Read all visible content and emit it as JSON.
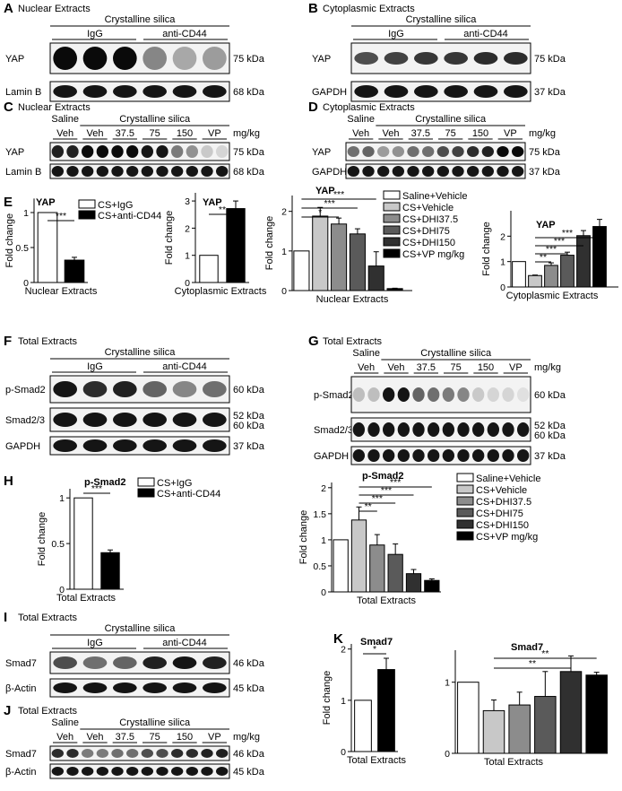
{
  "panels": {
    "A": {
      "label": "A",
      "extract": "Nuclear Extracts",
      "treatment": "Crystalline silica",
      "groups": [
        "IgG",
        "anti-CD44"
      ],
      "rows": [
        {
          "name": "YAP",
          "kda": "75 kDa"
        },
        {
          "name": "Lamin B",
          "kda": "68 kDa"
        }
      ]
    },
    "B": {
      "label": "B",
      "extract": "Cytoplasmic Extracts",
      "treatment": "Crystalline silica",
      "groups": [
        "IgG",
        "anti-CD44"
      ],
      "rows": [
        {
          "name": "YAP",
          "kda": "75 kDa"
        },
        {
          "name": "GAPDH",
          "kda": "37 kDa"
        }
      ]
    },
    "C": {
      "label": "C",
      "extract": "Nuclear Extracts",
      "saline": "Saline",
      "treatment": "Crystalline silica",
      "lanes": [
        "Veh",
        "Veh",
        "37.5",
        "75",
        "150",
        "VP"
      ],
      "unit": "mg/kg",
      "rows": [
        {
          "name": "YAP",
          "kda": "75 kDa"
        },
        {
          "name": "Lamin B",
          "kda": "68 kDa"
        }
      ]
    },
    "D": {
      "label": "D",
      "extract": "Cytoplasmic Extracts",
      "saline": "Saline",
      "treatment": "Crystalline silica",
      "lanes": [
        "Veh",
        "Veh",
        "37.5",
        "75",
        "150",
        "VP"
      ],
      "unit": "mg/kg",
      "rows": [
        {
          "name": "YAP",
          "kda": "75 kDa"
        },
        {
          "name": "GAPDH",
          "kda": "37 kDa"
        }
      ]
    },
    "E": {
      "label": "E"
    },
    "F": {
      "label": "F",
      "extract": "Total Extracts",
      "treatment": "Crystalline silica",
      "groups": [
        "IgG",
        "anti-CD44"
      ],
      "rows": [
        {
          "name": "p-Smad2",
          "kda": "60 kDa"
        },
        {
          "name": "Smad2/3",
          "kda": "52 kDa",
          "kda2": "60 kDa"
        },
        {
          "name": "GAPDH",
          "kda": "37 kDa"
        }
      ]
    },
    "G": {
      "label": "G",
      "extract": "Total Extracts",
      "saline": "Saline",
      "treatment": "Crystalline silica",
      "lanes": [
        "Veh",
        "Veh",
        "37.5",
        "75",
        "150",
        "VP"
      ],
      "unit": "mg/kg",
      "rows": [
        {
          "name": "p-Smad2",
          "kda": "60 kDa"
        },
        {
          "name": "Smad2/3",
          "kda": "52 kDa",
          "kda2": "60 kDa"
        },
        {
          "name": "GAPDH",
          "kda": "37 kDa"
        }
      ]
    },
    "H": {
      "label": "H"
    },
    "I": {
      "label": "I",
      "extract": "Total Extracts",
      "treatment": "Crystalline silica",
      "groups": [
        "IgG",
        "anti-CD44"
      ],
      "rows": [
        {
          "name": "Smad7",
          "kda": "46 kDa"
        },
        {
          "name": "β-Actin",
          "kda": "45 kDa"
        }
      ]
    },
    "J": {
      "label": "J",
      "extract": "Total Extracts",
      "saline": "Saline",
      "treatment": "Crystalline silica",
      "lanes": [
        "Veh",
        "Veh",
        "37.5",
        "75",
        "150",
        "VP"
      ],
      "unit": "mg/kg",
      "rows": [
        {
          "name": "Smad7",
          "kda": "46 kDa"
        },
        {
          "name": "β-Actin",
          "kda": "45 kDa"
        }
      ]
    },
    "K": {
      "label": "K"
    }
  },
  "legend_cd44": [
    "CS+IgG",
    "CS+anti-CD44"
  ],
  "legend_dhi": [
    "Saline+Vehicle",
    "CS+Vehicle",
    "CS+DHI37.5",
    "CS+DHI75",
    "CS+DHI150",
    "CS+VP mg/kg"
  ],
  "chart_data": [
    {
      "type": "bar",
      "panel": "E",
      "title": "YAP",
      "xlabel": "Nuclear Extracts",
      "ylabel": "Fold change",
      "categories": [
        "CS+IgG",
        "CS+anti-CD44"
      ],
      "values": [
        1.0,
        0.32
      ],
      "errors": [
        0.0,
        0.04
      ],
      "ylim": [
        0,
        1.2
      ],
      "yticks": [
        "0",
        "0.5",
        "1"
      ],
      "significance": [
        "***"
      ],
      "colors": [
        "#ffffff",
        "#000000"
      ]
    },
    {
      "type": "bar",
      "panel": "E",
      "title": "YAP",
      "xlabel": "Cytoplasmic Extracts",
      "ylabel": "Fold change",
      "categories": [
        "CS+IgG",
        "CS+anti-CD44"
      ],
      "values": [
        1.0,
        2.72
      ],
      "errors": [
        0.0,
        0.28
      ],
      "ylim": [
        0,
        3.3
      ],
      "yticks": [
        "0",
        "1",
        "2",
        "3"
      ],
      "significance": [
        "**"
      ],
      "colors": [
        "#ffffff",
        "#000000"
      ]
    },
    {
      "type": "bar",
      "panel": "E",
      "title": "YAP",
      "xlabel": "Nuclear Extracts",
      "ylabel": "Fold change",
      "categories": [
        "Saline+Vehicle",
        "CS+Vehicle",
        "CS+DHI37.5",
        "CS+DHI75",
        "CS+DHI150",
        "CS+VP mg/kg"
      ],
      "values": [
        1.0,
        1.88,
        1.68,
        1.43,
        0.62,
        0.05
      ],
      "errors": [
        0.0,
        0.22,
        0.15,
        0.13,
        0.36,
        0.01
      ],
      "ylim": [
        0,
        2.4
      ],
      "yticks": [
        "0",
        "1",
        "2"
      ],
      "significance": [
        "***",
        "***",
        "*"
      ],
      "colors": [
        "#ffffff",
        "#c8c8c8",
        "#8c8c8c",
        "#5a5a5a",
        "#303030",
        "#000000"
      ]
    },
    {
      "type": "bar",
      "panel": "E",
      "title": "YAP",
      "xlabel": "Cytoplasmic Extracts",
      "ylabel": "Fold change",
      "categories": [
        "Saline+Vehicle",
        "CS+Vehicle",
        "CS+DHI37.5",
        "CS+DHI75",
        "CS+DHI150",
        "CS+VP mg/kg"
      ],
      "values": [
        1.0,
        0.45,
        0.85,
        1.25,
        2.02,
        2.38
      ],
      "errors": [
        0.0,
        0.02,
        0.1,
        0.12,
        0.2,
        0.28
      ],
      "ylim": [
        0,
        3.0
      ],
      "yticks": [
        "0",
        "1",
        "2"
      ],
      "significance": [
        "***",
        "***",
        "***",
        "**"
      ],
      "colors": [
        "#ffffff",
        "#c8c8c8",
        "#8c8c8c",
        "#5a5a5a",
        "#303030",
        "#000000"
      ]
    },
    {
      "type": "bar",
      "panel": "H",
      "title": "p-Smad2",
      "xlabel": "Total Extracts",
      "ylabel": "Fold change",
      "categories": [
        "CS+IgG",
        "CS+anti-CD44"
      ],
      "values": [
        1.0,
        0.4
      ],
      "errors": [
        0.0,
        0.03
      ],
      "ylim": [
        0,
        1.1
      ],
      "yticks": [
        "0",
        "0.5",
        "1"
      ],
      "significance": [
        "***"
      ],
      "colors": [
        "#ffffff",
        "#000000"
      ]
    },
    {
      "type": "bar",
      "panel": "H",
      "title": "p-Smad2",
      "xlabel": "Total Extracts",
      "ylabel": "Fold change",
      "categories": [
        "Saline+Vehicle",
        "CS+Vehicle",
        "CS+DHI37.5",
        "CS+DHI75",
        "CS+DHI150",
        "CS+VP mg/kg"
      ],
      "values": [
        1.0,
        1.38,
        0.9,
        0.72,
        0.35,
        0.22
      ],
      "errors": [
        0.0,
        0.25,
        0.2,
        0.2,
        0.08,
        0.03
      ],
      "ylim": [
        0,
        2.1
      ],
      "yticks": [
        "0",
        "0.5",
        "1",
        "1.5",
        "2"
      ],
      "significance": [
        "***",
        "***",
        "***",
        "**"
      ],
      "colors": [
        "#ffffff",
        "#c8c8c8",
        "#8c8c8c",
        "#5a5a5a",
        "#303030",
        "#000000"
      ]
    },
    {
      "type": "bar",
      "panel": "K",
      "title": "Smad7",
      "xlabel": "Total Extracts",
      "ylabel": "Fold change",
      "categories": [
        "CS+IgG",
        "CS+anti-CD44"
      ],
      "values": [
        1.0,
        1.6
      ],
      "errors": [
        0.0,
        0.22
      ],
      "ylim": [
        0,
        2.1
      ],
      "yticks": [
        "0",
        "1",
        "2"
      ],
      "significance": [
        "*"
      ],
      "colors": [
        "#ffffff",
        "#000000"
      ]
    },
    {
      "type": "bar",
      "panel": "K",
      "title": "Smad7",
      "xlabel": "Total Extracts",
      "ylabel": "",
      "categories": [
        "Saline+Vehicle",
        "CS+Vehicle",
        "CS+DHI37.5",
        "CS+DHI75",
        "CS+DHI150",
        "CS+VP mg/kg"
      ],
      "values": [
        1.0,
        0.6,
        0.68,
        0.8,
        1.15,
        1.1
      ],
      "errors": [
        0.0,
        0.15,
        0.18,
        0.35,
        0.22,
        0.04
      ],
      "ylim": [
        0,
        1.45
      ],
      "yticks": [
        "0",
        "1"
      ],
      "significance": [
        "**",
        "**"
      ],
      "colors": [
        "#ffffff",
        "#c8c8c8",
        "#8c8c8c",
        "#5a5a5a",
        "#303030",
        "#000000"
      ]
    }
  ]
}
